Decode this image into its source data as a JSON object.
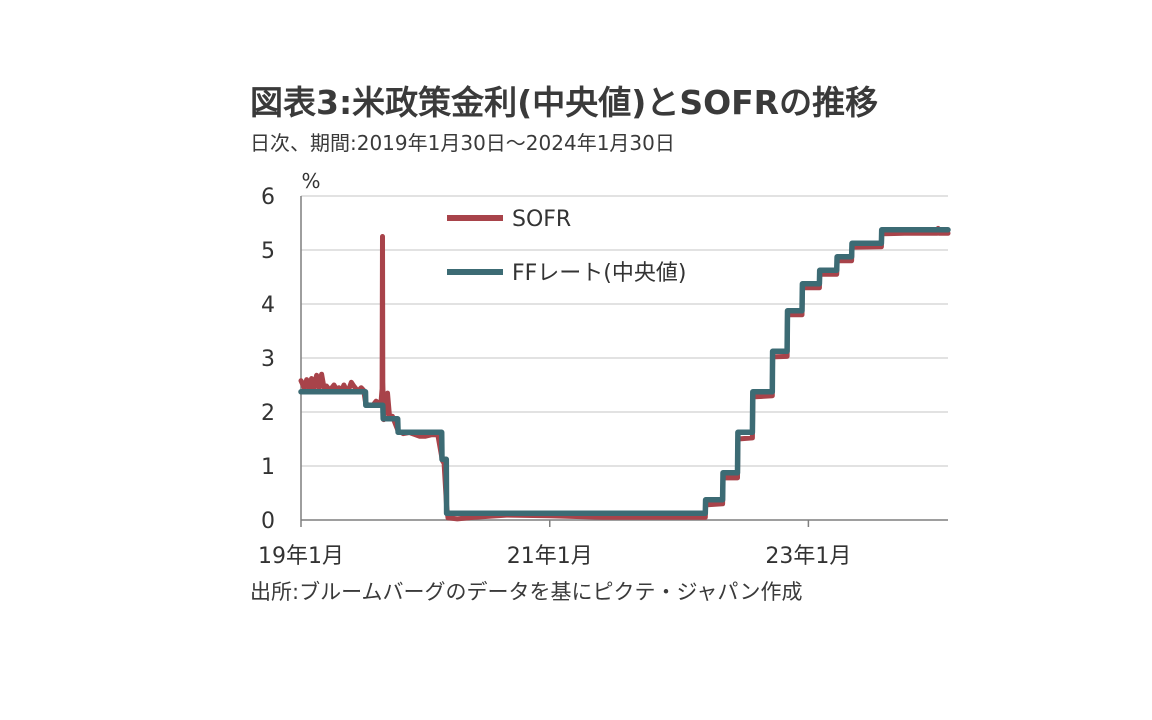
{
  "title": "図表3:米政策金利(中央値)とSOFRの推移",
  "subtitle": "日次、期間:2019年1月30日〜2024年1月30日",
  "source": "出所:ブルームバーグのデータを基にピクテ・ジャパン作成",
  "chart_data": {
    "type": "line",
    "y_unit_label": "%",
    "ylim": [
      0,
      6
    ],
    "y_ticks": [
      "0",
      "1",
      "2",
      "3",
      "4",
      "5",
      "6"
    ],
    "xlim": [
      "2019-01-30",
      "2024-01-30"
    ],
    "x_ticks": [
      {
        "label": "19年1月",
        "date": "2019-01-30"
      },
      {
        "label": "21年1月",
        "date": "2021-01-01"
      },
      {
        "label": "23年1月",
        "date": "2023-01-01"
      }
    ],
    "grid": "horizontal",
    "legend_position": "top-left",
    "series": [
      {
        "name": "SOFR",
        "color": "#a8434a",
        "points": [
          [
            "2019-01-30",
            2.58
          ],
          [
            "2019-02-08",
            2.45
          ],
          [
            "2019-02-15",
            2.6
          ],
          [
            "2019-02-22",
            2.42
          ],
          [
            "2019-03-01",
            2.62
          ],
          [
            "2019-03-08",
            2.44
          ],
          [
            "2019-03-15",
            2.68
          ],
          [
            "2019-03-22",
            2.45
          ],
          [
            "2019-03-29",
            2.7
          ],
          [
            "2019-04-05",
            2.45
          ],
          [
            "2019-04-12",
            2.48
          ],
          [
            "2019-04-19",
            2.42
          ],
          [
            "2019-04-26",
            2.44
          ],
          [
            "2019-05-03",
            2.5
          ],
          [
            "2019-05-10",
            2.42
          ],
          [
            "2019-05-17",
            2.45
          ],
          [
            "2019-05-24",
            2.38
          ],
          [
            "2019-05-31",
            2.5
          ],
          [
            "2019-06-07",
            2.4
          ],
          [
            "2019-06-14",
            2.42
          ],
          [
            "2019-06-21",
            2.55
          ],
          [
            "2019-06-28",
            2.48
          ],
          [
            "2019-07-05",
            2.42
          ],
          [
            "2019-07-12",
            2.4
          ],
          [
            "2019-07-19",
            2.45
          ],
          [
            "2019-07-26",
            2.4
          ],
          [
            "2019-08-01",
            2.15
          ],
          [
            "2019-08-09",
            2.13
          ],
          [
            "2019-08-16",
            2.12
          ],
          [
            "2019-08-23",
            2.14
          ],
          [
            "2019-08-30",
            2.2
          ],
          [
            "2019-09-06",
            2.17
          ],
          [
            "2019-09-13",
            2.2
          ],
          [
            "2019-09-16",
            2.43
          ],
          [
            "2019-09-17",
            5.25
          ],
          [
            "2019-09-18",
            2.55
          ],
          [
            "2019-09-20",
            1.86
          ],
          [
            "2019-10-01",
            2.35
          ],
          [
            "2019-10-07",
            1.9
          ],
          [
            "2019-10-15",
            1.92
          ],
          [
            "2019-10-31",
            1.65
          ],
          [
            "2019-11-15",
            1.6
          ],
          [
            "2019-12-02",
            1.62
          ],
          [
            "2019-12-31",
            1.55
          ],
          [
            "2020-01-15",
            1.55
          ],
          [
            "2020-02-03",
            1.58
          ],
          [
            "2020-02-20",
            1.58
          ],
          [
            "2020-03-04",
            1.1
          ],
          [
            "2020-03-09",
            1.05
          ],
          [
            "2020-03-16",
            0.26
          ],
          [
            "2020-03-20",
            0.04
          ],
          [
            "2020-04-15",
            0.02
          ],
          [
            "2020-06-01",
            0.05
          ],
          [
            "2020-09-01",
            0.09
          ],
          [
            "2021-01-01",
            0.08
          ],
          [
            "2021-06-01",
            0.05
          ],
          [
            "2021-09-01",
            0.05
          ],
          [
            "2022-01-01",
            0.05
          ],
          [
            "2022-03-16",
            0.05
          ],
          [
            "2022-03-17",
            0.28
          ],
          [
            "2022-05-04",
            0.3
          ],
          [
            "2022-05-05",
            0.78
          ],
          [
            "2022-06-15",
            0.78
          ],
          [
            "2022-06-16",
            1.5
          ],
          [
            "2022-07-27",
            1.52
          ],
          [
            "2022-07-28",
            2.28
          ],
          [
            "2022-09-21",
            2.3
          ],
          [
            "2022-09-22",
            3.02
          ],
          [
            "2022-11-02",
            3.03
          ],
          [
            "2022-11-03",
            3.8
          ],
          [
            "2022-12-14",
            3.8
          ],
          [
            "2022-12-15",
            4.3
          ],
          [
            "2023-02-01",
            4.3
          ],
          [
            "2023-02-02",
            4.55
          ],
          [
            "2023-03-22",
            4.55
          ],
          [
            "2023-03-23",
            4.8
          ],
          [
            "2023-05-03",
            4.8
          ],
          [
            "2023-05-04",
            5.05
          ],
          [
            "2023-07-26",
            5.06
          ],
          [
            "2023-07-27",
            5.3
          ],
          [
            "2023-09-29",
            5.31
          ],
          [
            "2023-10-02",
            5.31
          ],
          [
            "2023-12-29",
            5.31
          ],
          [
            "2024-01-02",
            5.4
          ],
          [
            "2024-01-05",
            5.31
          ],
          [
            "2024-01-30",
            5.31
          ]
        ]
      },
      {
        "name": "FFレート(中央値)",
        "color": "#3c6b74",
        "points": [
          [
            "2019-01-30",
            2.375
          ],
          [
            "2019-07-31",
            2.375
          ],
          [
            "2019-08-01",
            2.125
          ],
          [
            "2019-09-18",
            2.125
          ],
          [
            "2019-09-19",
            1.875
          ],
          [
            "2019-10-30",
            1.875
          ],
          [
            "2019-10-31",
            1.625
          ],
          [
            "2020-03-02",
            1.625
          ],
          [
            "2020-03-03",
            1.125
          ],
          [
            "2020-03-15",
            1.125
          ],
          [
            "2020-03-16",
            0.125
          ],
          [
            "2022-03-16",
            0.125
          ],
          [
            "2022-03-17",
            0.375
          ],
          [
            "2022-05-04",
            0.375
          ],
          [
            "2022-05-05",
            0.875
          ],
          [
            "2022-06-15",
            0.875
          ],
          [
            "2022-06-16",
            1.625
          ],
          [
            "2022-07-27",
            1.625
          ],
          [
            "2022-07-28",
            2.375
          ],
          [
            "2022-09-21",
            2.375
          ],
          [
            "2022-09-22",
            3.125
          ],
          [
            "2022-11-02",
            3.125
          ],
          [
            "2022-11-03",
            3.875
          ],
          [
            "2022-12-14",
            3.875
          ],
          [
            "2022-12-15",
            4.375
          ],
          [
            "2023-02-01",
            4.375
          ],
          [
            "2023-02-02",
            4.625
          ],
          [
            "2023-03-22",
            4.625
          ],
          [
            "2023-03-23",
            4.875
          ],
          [
            "2023-05-03",
            4.875
          ],
          [
            "2023-05-04",
            5.125
          ],
          [
            "2023-07-26",
            5.125
          ],
          [
            "2023-07-27",
            5.375
          ],
          [
            "2024-01-30",
            5.375
          ]
        ]
      }
    ]
  }
}
